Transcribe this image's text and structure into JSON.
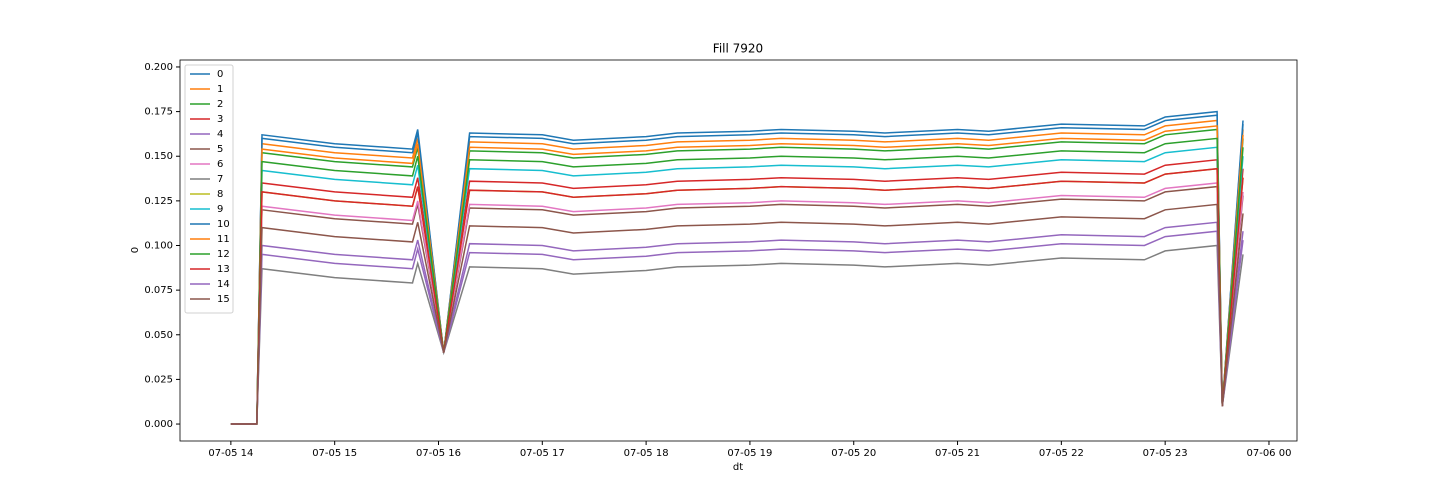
{
  "chart_data": {
    "type": "line",
    "title": "Fill 7920",
    "x_label": "dt",
    "y_label": "0",
    "x": [
      14.0,
      14.25,
      14.3,
      15.0,
      15.75,
      15.8,
      16.05,
      16.3,
      17.0,
      17.3,
      18.0,
      18.3,
      19.0,
      19.3,
      20.0,
      20.3,
      21.0,
      21.3,
      22.0,
      22.8,
      23.0,
      23.5,
      23.55,
      23.75
    ],
    "xlim": [
      13.51,
      24.27
    ],
    "xticks": [
      {
        "value": 14,
        "label": "07-05 14"
      },
      {
        "value": 15,
        "label": "07-05 15"
      },
      {
        "value": 16,
        "label": "07-05 16"
      },
      {
        "value": 17,
        "label": "07-05 17"
      },
      {
        "value": 18,
        "label": "07-05 18"
      },
      {
        "value": 19,
        "label": "07-05 19"
      },
      {
        "value": 20,
        "label": "07-05 20"
      },
      {
        "value": 21,
        "label": "07-05 21"
      },
      {
        "value": 22,
        "label": "07-05 22"
      },
      {
        "value": 23,
        "label": "07-05 23"
      },
      {
        "value": 24,
        "label": "07-06 00"
      }
    ],
    "ylim": [
      -0.0095,
      0.2039
    ],
    "yticks": [
      {
        "value": 0,
        "label": "0.000"
      },
      {
        "value": 0.025,
        "label": "0.025"
      },
      {
        "value": 0.05,
        "label": "0.050"
      },
      {
        "value": 0.075,
        "label": "0.075"
      },
      {
        "value": 0.1,
        "label": "0.100"
      },
      {
        "value": 0.125,
        "label": "0.125"
      },
      {
        "value": 0.15,
        "label": "0.150"
      },
      {
        "value": 0.175,
        "label": "0.175"
      },
      {
        "value": 0.2,
        "label": "0.200"
      }
    ],
    "legend": "upper left",
    "series": [
      {
        "name": "0",
        "color": "#1f77b4",
        "values": [
          0,
          0,
          0.162,
          0.157,
          0.154,
          0.165,
          0.04,
          0.163,
          0.162,
          0.159,
          0.161,
          0.163,
          0.164,
          0.165,
          0.164,
          0.163,
          0.165,
          0.164,
          0.168,
          0.167,
          0.172,
          0.175,
          0.01,
          0.17
        ]
      },
      {
        "name": "1",
        "color": "#ff7f0e",
        "values": [
          0,
          0,
          0.157,
          0.152,
          0.149,
          0.16,
          0.04,
          0.158,
          0.157,
          0.154,
          0.156,
          0.158,
          0.159,
          0.16,
          0.159,
          0.158,
          0.16,
          0.159,
          0.163,
          0.162,
          0.167,
          0.17,
          0.01,
          0.165
        ]
      },
      {
        "name": "2",
        "color": "#2ca02c",
        "values": [
          0,
          0,
          0.152,
          0.147,
          0.144,
          0.155,
          0.04,
          0.153,
          0.152,
          0.149,
          0.151,
          0.153,
          0.154,
          0.155,
          0.154,
          0.153,
          0.155,
          0.154,
          0.158,
          0.157,
          0.162,
          0.165,
          0.01,
          0.16
        ]
      },
      {
        "name": "3",
        "color": "#d62728",
        "values": [
          0,
          0,
          0.135,
          0.13,
          0.127,
          0.138,
          0.04,
          0.136,
          0.135,
          0.132,
          0.134,
          0.136,
          0.137,
          0.138,
          0.137,
          0.136,
          0.138,
          0.137,
          0.141,
          0.14,
          0.145,
          0.148,
          0.01,
          0.143
        ]
      },
      {
        "name": "4",
        "color": "#9467bd",
        "values": [
          0,
          0,
          0.1,
          0.095,
          0.092,
          0.103,
          0.04,
          0.101,
          0.1,
          0.097,
          0.099,
          0.101,
          0.102,
          0.103,
          0.102,
          0.101,
          0.103,
          0.102,
          0.106,
          0.105,
          0.11,
          0.113,
          0.01,
          0.108
        ]
      },
      {
        "name": "5",
        "color": "#8c564b",
        "values": [
          0,
          0,
          0.12,
          0.115,
          0.112,
          0.123,
          0.04,
          0.121,
          0.12,
          0.117,
          0.119,
          0.121,
          0.122,
          0.123,
          0.122,
          0.121,
          0.123,
          0.122,
          0.126,
          0.125,
          0.13,
          0.133,
          0.01,
          0.128
        ]
      },
      {
        "name": "6",
        "color": "#e377c2",
        "values": [
          0,
          0,
          0.122,
          0.117,
          0.114,
          0.125,
          0.04,
          0.123,
          0.122,
          0.119,
          0.121,
          0.123,
          0.124,
          0.125,
          0.124,
          0.123,
          0.125,
          0.124,
          0.128,
          0.127,
          0.132,
          0.135,
          0.01,
          0.13
        ]
      },
      {
        "name": "7",
        "color": "#7f7f7f",
        "values": [
          0,
          0,
          0.087,
          0.082,
          0.079,
          0.09,
          0.04,
          0.088,
          0.087,
          0.084,
          0.086,
          0.088,
          0.089,
          0.09,
          0.089,
          0.088,
          0.09,
          0.089,
          0.093,
          0.092,
          0.097,
          0.1,
          0.01,
          0.095
        ]
      },
      {
        "name": "8",
        "color": "#bcbd22",
        "values": [
          0,
          0,
          0.13,
          0.125,
          0.122,
          0.133,
          0.04,
          0.131,
          0.13,
          0.127,
          0.129,
          0.131,
          0.132,
          0.133,
          0.132,
          0.131,
          0.133,
          0.132,
          0.136,
          0.135,
          0.14,
          0.143,
          0.01,
          0.138
        ]
      },
      {
        "name": "9",
        "color": "#17becf",
        "values": [
          0,
          0,
          0.142,
          0.137,
          0.134,
          0.145,
          0.04,
          0.143,
          0.142,
          0.139,
          0.141,
          0.143,
          0.144,
          0.145,
          0.144,
          0.143,
          0.145,
          0.144,
          0.148,
          0.147,
          0.152,
          0.155,
          0.01,
          0.15
        ]
      },
      {
        "name": "10",
        "color": "#1f77b4",
        "values": [
          0,
          0,
          0.16,
          0.155,
          0.152,
          0.163,
          0.04,
          0.161,
          0.16,
          0.157,
          0.159,
          0.161,
          0.162,
          0.163,
          0.162,
          0.161,
          0.163,
          0.162,
          0.166,
          0.165,
          0.17,
          0.173,
          0.01,
          0.168
        ]
      },
      {
        "name": "11",
        "color": "#ff7f0e",
        "values": [
          0,
          0,
          0.154,
          0.149,
          0.146,
          0.157,
          0.04,
          0.155,
          0.154,
          0.151,
          0.153,
          0.155,
          0.156,
          0.157,
          0.156,
          0.155,
          0.157,
          0.156,
          0.16,
          0.159,
          0.164,
          0.167,
          0.01,
          0.162
        ]
      },
      {
        "name": "12",
        "color": "#2ca02c",
        "values": [
          0,
          0,
          0.147,
          0.142,
          0.139,
          0.15,
          0.04,
          0.148,
          0.147,
          0.144,
          0.146,
          0.148,
          0.149,
          0.15,
          0.149,
          0.148,
          0.15,
          0.149,
          0.153,
          0.152,
          0.157,
          0.16,
          0.01,
          0.155
        ]
      },
      {
        "name": "13",
        "color": "#d62728",
        "values": [
          0,
          0,
          0.13,
          0.125,
          0.122,
          0.133,
          0.04,
          0.131,
          0.13,
          0.127,
          0.129,
          0.131,
          0.132,
          0.133,
          0.132,
          0.131,
          0.133,
          0.132,
          0.136,
          0.135,
          0.14,
          0.143,
          0.01,
          0.138
        ]
      },
      {
        "name": "14",
        "color": "#9467bd",
        "values": [
          0,
          0,
          0.095,
          0.09,
          0.087,
          0.098,
          0.04,
          0.096,
          0.095,
          0.092,
          0.094,
          0.096,
          0.097,
          0.098,
          0.097,
          0.096,
          0.098,
          0.097,
          0.101,
          0.1,
          0.105,
          0.108,
          0.01,
          0.103
        ]
      },
      {
        "name": "15",
        "color": "#8c564b",
        "values": [
          0,
          0,
          0.11,
          0.105,
          0.102,
          0.113,
          0.04,
          0.111,
          0.11,
          0.107,
          0.109,
          0.111,
          0.112,
          0.113,
          0.112,
          0.111,
          0.113,
          0.112,
          0.116,
          0.115,
          0.12,
          0.123,
          0.01,
          0.118
        ]
      }
    ]
  }
}
